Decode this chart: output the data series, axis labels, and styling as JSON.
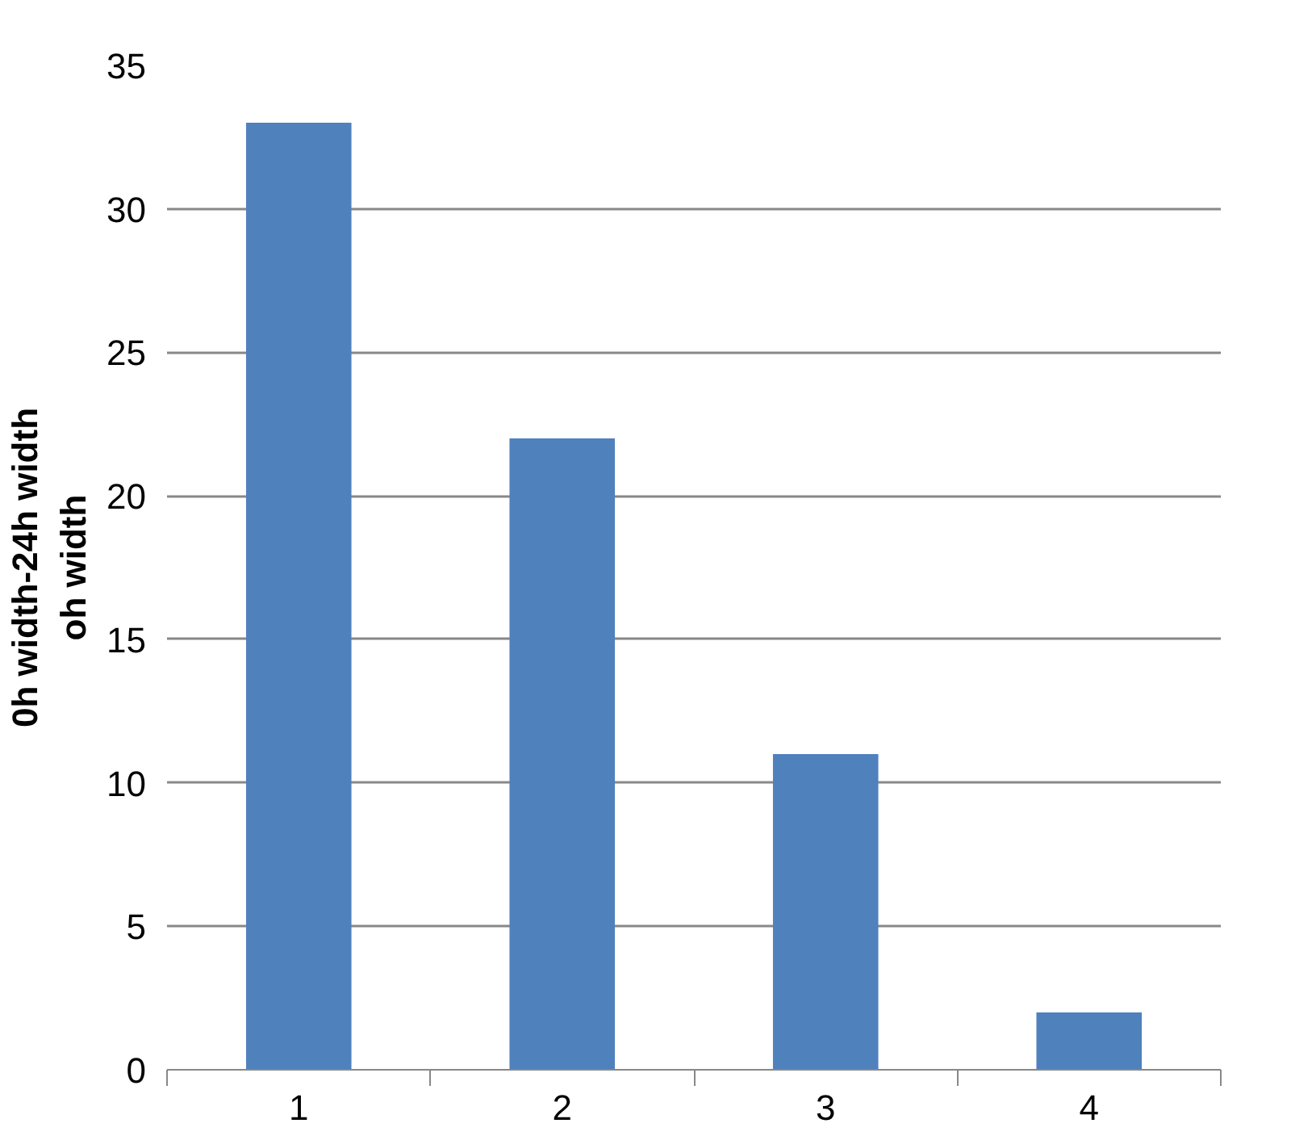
{
  "chart_data": {
    "type": "bar",
    "ylabel": "0h width-24h width\noh width",
    "categories": [
      "1",
      "2",
      "3",
      "4"
    ],
    "values": [
      33,
      22,
      11,
      2
    ],
    "color": "#4f81bd",
    "ylim": [
      0,
      35
    ],
    "yticks": [
      0,
      5,
      10,
      15,
      20,
      25,
      30,
      35
    ],
    "grid": "y"
  }
}
